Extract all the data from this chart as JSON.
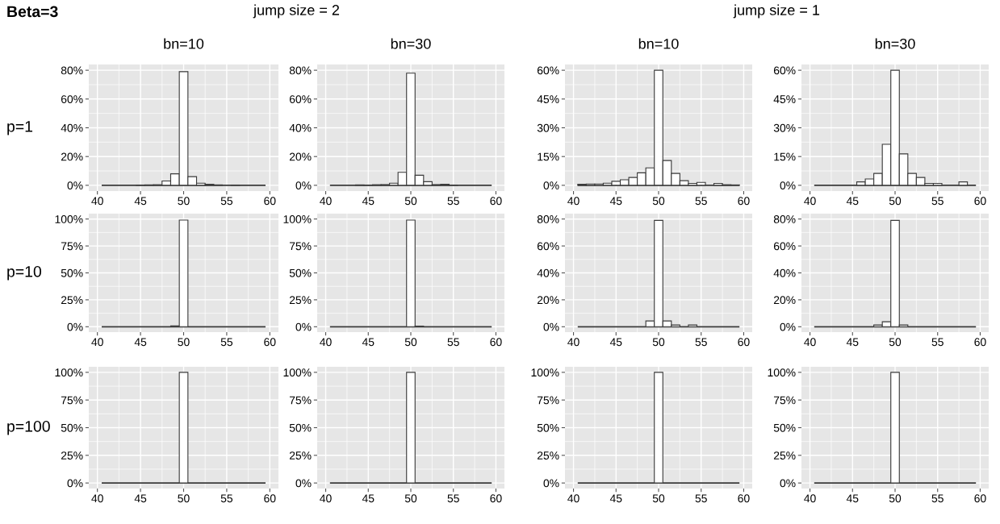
{
  "chart_data": [
    {
      "type": "histogram",
      "title": "bn=10",
      "ylabel": "p=1",
      "annotations": [
        "Beta=3",
        "jump size = 2"
      ],
      "bins": [
        40.5,
        41.5,
        42.5,
        43.5,
        44.5,
        45.5,
        46.5,
        47.5,
        48.5,
        49.5,
        50.5,
        51.5,
        52.5,
        53.5,
        54.5,
        55.5,
        56.5,
        57.5,
        58.5,
        59.5
      ],
      "values": [
        0,
        0,
        0,
        null,
        0.2,
        0.3,
        0.4,
        3,
        8,
        79,
        6,
        1.5,
        0.7,
        0.3,
        0,
        0.2,
        0,
        0,
        0
      ],
      "color": "#ffffff",
      "xlim": [
        39,
        61
      ],
      "xticks": [
        40,
        45,
        50,
        55,
        60
      ],
      "ylim": [
        -4,
        84
      ],
      "yticks": [
        {
          "value": 0,
          "label": "0%"
        },
        {
          "value": 20,
          "label": "20%"
        },
        {
          "value": 40,
          "label": "40%"
        },
        {
          "value": 60,
          "label": "60%"
        },
        {
          "value": 80,
          "label": "80%"
        }
      ],
      "grid": true
    },
    {
      "type": "histogram",
      "title": "bn=30",
      "bins": [
        40.5,
        41.5,
        42.5,
        43.5,
        44.5,
        45.5,
        46.5,
        47.5,
        48.5,
        49.5,
        50.5,
        51.5,
        52.5,
        53.5,
        54.5,
        55.5,
        56.5,
        57.5,
        58.5,
        59.5
      ],
      "values": [
        0,
        0,
        0,
        0.3,
        0.2,
        0.4,
        0.5,
        1.5,
        9,
        78,
        7,
        2.5,
        0.5,
        0.7,
        0.2,
        0,
        0,
        0,
        0
      ],
      "color": "#ffffff",
      "xlim": [
        39,
        61
      ],
      "xticks": [
        40,
        45,
        50,
        55,
        60
      ],
      "ylim": [
        -4,
        84
      ],
      "yticks": [
        {
          "value": 0,
          "label": "0%"
        },
        {
          "value": 20,
          "label": "20%"
        },
        {
          "value": 40,
          "label": "40%"
        },
        {
          "value": 60,
          "label": "60%"
        },
        {
          "value": 80,
          "label": "80%"
        }
      ],
      "grid": true
    },
    {
      "type": "histogram",
      "title": "bn=10",
      "annotations": [
        "jump size = 1"
      ],
      "bins": [
        40.5,
        41.5,
        42.5,
        43.5,
        44.5,
        45.5,
        46.5,
        47.5,
        48.5,
        49.5,
        50.5,
        51.5,
        52.5,
        53.5,
        54.5,
        55.5,
        56.5,
        57.5,
        58.5,
        59.5
      ],
      "values": [
        0.5,
        0.7,
        0.7,
        1.1,
        2.1,
        2.9,
        4.1,
        6.5,
        9.1,
        60,
        12.9,
        6.2,
        2.4,
        1,
        1.5,
        0,
        1,
        0.3,
        0.2
      ],
      "color": "#ffffff",
      "xlim": [
        39,
        61
      ],
      "xticks": [
        40,
        45,
        50,
        55,
        60
      ],
      "ylim": [
        -3,
        63
      ],
      "yticks": [
        {
          "value": 0,
          "label": "0%"
        },
        {
          "value": 15,
          "label": "15%"
        },
        {
          "value": 30,
          "label": "30%"
        },
        {
          "value": 45,
          "label": "45%"
        },
        {
          "value": 60,
          "label": "60%"
        }
      ],
      "grid": true
    },
    {
      "type": "histogram",
      "title": "bn=30",
      "bins": [
        40.5,
        41.5,
        42.5,
        43.5,
        44.5,
        45.5,
        46.5,
        47.5,
        48.5,
        49.5,
        50.5,
        51.5,
        52.5,
        53.5,
        54.5,
        55.5,
        56.5,
        57.5,
        58.5,
        59.5
      ],
      "values": [
        0,
        0,
        0,
        0,
        0,
        1.8,
        3.3,
        6.2,
        21.4,
        60,
        16.4,
        6.2,
        4.1,
        1,
        1,
        0,
        0,
        1.8,
        0
      ],
      "color": "#ffffff",
      "xlim": [
        39,
        61
      ],
      "xticks": [
        40,
        45,
        50,
        55,
        60
      ],
      "ylim": [
        -3,
        63
      ],
      "yticks": [
        {
          "value": 0,
          "label": "0%"
        },
        {
          "value": 15,
          "label": "15%"
        },
        {
          "value": 30,
          "label": "30%"
        },
        {
          "value": 45,
          "label": "45%"
        },
        {
          "value": 60,
          "label": "60%"
        }
      ],
      "grid": true
    },
    {
      "type": "histogram",
      "ylabel": "p=10",
      "bins": [
        40.5,
        41.5,
        42.5,
        43.5,
        44.5,
        45.5,
        46.5,
        47.5,
        48.5,
        49.5,
        50.5,
        51.5,
        52.5,
        53.5,
        54.5,
        55.5,
        56.5,
        57.5,
        58.5,
        59.5
      ],
      "values": [
        0,
        0,
        0,
        0,
        0,
        0,
        0,
        0,
        0.8,
        99,
        null,
        0,
        0,
        0,
        0,
        0,
        0,
        0,
        0
      ],
      "color": "#ffffff",
      "xlim": [
        39,
        61
      ],
      "xticks": [
        40,
        45,
        50,
        55,
        60
      ],
      "ylim": [
        -5,
        105
      ],
      "yticks": [
        {
          "value": 0,
          "label": "0%"
        },
        {
          "value": 25,
          "label": "25%"
        },
        {
          "value": 50,
          "label": "50%"
        },
        {
          "value": 75,
          "label": "75%"
        },
        {
          "value": 100,
          "label": "100%"
        }
      ],
      "grid": true
    },
    {
      "type": "histogram",
      "bins": [
        40.5,
        41.5,
        42.5,
        43.5,
        44.5,
        45.5,
        46.5,
        47.5,
        48.5,
        49.5,
        50.5,
        51.5,
        52.5,
        53.5,
        54.5,
        55.5,
        56.5,
        57.5,
        58.5,
        59.5
      ],
      "values": [
        0,
        0,
        0,
        0,
        0,
        0,
        0,
        0,
        0,
        99,
        0.6,
        0,
        0,
        0,
        0,
        0,
        0,
        0,
        0
      ],
      "color": "#ffffff",
      "xlim": [
        39,
        61
      ],
      "xticks": [
        40,
        45,
        50,
        55,
        60
      ],
      "ylim": [
        -5,
        105
      ],
      "yticks": [
        {
          "value": 0,
          "label": "0%"
        },
        {
          "value": 25,
          "label": "25%"
        },
        {
          "value": 50,
          "label": "50%"
        },
        {
          "value": 75,
          "label": "75%"
        },
        {
          "value": 100,
          "label": "100%"
        }
      ],
      "grid": true
    },
    {
      "type": "histogram",
      "bins": [
        40.5,
        41.5,
        42.5,
        43.5,
        44.5,
        45.5,
        46.5,
        47.5,
        48.5,
        49.5,
        50.5,
        51.5,
        52.5,
        53.5,
        54.5,
        55.5,
        56.5,
        57.5,
        58.5,
        59.5
      ],
      "values": [
        0,
        0,
        0,
        0,
        0,
        0,
        0,
        0,
        4.3,
        79,
        4.3,
        1.3,
        0,
        1.3,
        0,
        0,
        0,
        0,
        0
      ],
      "color": "#ffffff",
      "xlim": [
        39,
        61
      ],
      "xticks": [
        40,
        45,
        50,
        55,
        60
      ],
      "ylim": [
        -4,
        84
      ],
      "yticks": [
        {
          "value": 0,
          "label": "0%"
        },
        {
          "value": 20,
          "label": "20%"
        },
        {
          "value": 40,
          "label": "40%"
        },
        {
          "value": 60,
          "label": "60%"
        },
        {
          "value": 80,
          "label": "80%"
        }
      ],
      "grid": true
    },
    {
      "type": "histogram",
      "bins": [
        40.5,
        41.5,
        42.5,
        43.5,
        44.5,
        45.5,
        46.5,
        47.5,
        48.5,
        49.5,
        50.5,
        51.5,
        52.5,
        53.5,
        54.5,
        55.5,
        56.5,
        57.5,
        58.5,
        59.5
      ],
      "values": [
        0,
        0,
        0,
        0,
        0,
        0,
        0,
        1.3,
        3.7,
        79,
        1.3,
        0,
        0,
        0,
        0,
        0,
        0,
        0,
        0
      ],
      "color": "#ffffff",
      "xlim": [
        39,
        61
      ],
      "xticks": [
        40,
        45,
        50,
        55,
        60
      ],
      "ylim": [
        -4,
        84
      ],
      "yticks": [
        {
          "value": 0,
          "label": "0%"
        },
        {
          "value": 20,
          "label": "20%"
        },
        {
          "value": 40,
          "label": "40%"
        },
        {
          "value": 60,
          "label": "60%"
        },
        {
          "value": 80,
          "label": "80%"
        }
      ],
      "grid": true
    },
    {
      "type": "histogram",
      "ylabel": "p=100",
      "bins": [
        40.5,
        41.5,
        42.5,
        43.5,
        44.5,
        45.5,
        46.5,
        47.5,
        48.5,
        49.5,
        50.5,
        51.5,
        52.5,
        53.5,
        54.5,
        55.5,
        56.5,
        57.5,
        58.5,
        59.5
      ],
      "values": [
        0,
        0,
        0,
        0,
        0,
        0,
        0,
        0,
        0,
        100,
        0,
        0,
        0,
        0,
        0,
        0,
        0,
        0,
        0
      ],
      "color": "#ffffff",
      "xlim": [
        39,
        61
      ],
      "xticks": [
        40,
        45,
        50,
        55,
        60
      ],
      "ylim": [
        -5,
        105
      ],
      "yticks": [
        {
          "value": 0,
          "label": "0%"
        },
        {
          "value": 25,
          "label": "25%"
        },
        {
          "value": 50,
          "label": "50%"
        },
        {
          "value": 75,
          "label": "75%"
        },
        {
          "value": 100,
          "label": "100%"
        }
      ],
      "grid": true
    },
    {
      "type": "histogram",
      "bins": [
        40.5,
        41.5,
        42.5,
        43.5,
        44.5,
        45.5,
        46.5,
        47.5,
        48.5,
        49.5,
        50.5,
        51.5,
        52.5,
        53.5,
        54.5,
        55.5,
        56.5,
        57.5,
        58.5,
        59.5
      ],
      "values": [
        0,
        0,
        0,
        0,
        0,
        0,
        0,
        0,
        0,
        100,
        0,
        0,
        0,
        0,
        0,
        0,
        0,
        0,
        0
      ],
      "color": "#ffffff",
      "xlim": [
        39,
        61
      ],
      "xticks": [
        40,
        45,
        50,
        55,
        60
      ],
      "ylim": [
        -5,
        105
      ],
      "yticks": [
        {
          "value": 0,
          "label": "0%"
        },
        {
          "value": 25,
          "label": "25%"
        },
        {
          "value": 50,
          "label": "50%"
        },
        {
          "value": 75,
          "label": "75%"
        },
        {
          "value": 100,
          "label": "100%"
        }
      ],
      "grid": true
    },
    {
      "type": "histogram",
      "bins": [
        40.5,
        41.5,
        42.5,
        43.5,
        44.5,
        45.5,
        46.5,
        47.5,
        48.5,
        49.5,
        50.5,
        51.5,
        52.5,
        53.5,
        54.5,
        55.5,
        56.5,
        57.5,
        58.5,
        59.5
      ],
      "values": [
        0,
        0,
        0,
        0,
        0,
        0,
        0,
        0,
        0,
        100,
        0,
        0,
        0,
        0,
        0,
        0,
        0,
        0,
        0
      ],
      "color": "#ffffff",
      "xlim": [
        39,
        61
      ],
      "xticks": [
        40,
        45,
        50,
        55,
        60
      ],
      "ylim": [
        -5,
        105
      ],
      "yticks": [
        {
          "value": 0,
          "label": "0%"
        },
        {
          "value": 25,
          "label": "25%"
        },
        {
          "value": 50,
          "label": "50%"
        },
        {
          "value": 75,
          "label": "75%"
        },
        {
          "value": 100,
          "label": "100%"
        }
      ],
      "grid": true
    },
    {
      "type": "histogram",
      "bins": [
        40.5,
        41.5,
        42.5,
        43.5,
        44.5,
        45.5,
        46.5,
        47.5,
        48.5,
        49.5,
        50.5,
        51.5,
        52.5,
        53.5,
        54.5,
        55.5,
        56.5,
        57.5,
        58.5,
        59.5
      ],
      "values": [
        0,
        0,
        0,
        0,
        0,
        0,
        0,
        0,
        0,
        100,
        0,
        0,
        0,
        0,
        0,
        0,
        0,
        0,
        0
      ],
      "color": "#ffffff",
      "xlim": [
        39,
        61
      ],
      "xticks": [
        40,
        45,
        50,
        55,
        60
      ],
      "ylim": [
        -5,
        105
      ],
      "yticks": [
        {
          "value": 0,
          "label": "0%"
        },
        {
          "value": 25,
          "label": "25%"
        },
        {
          "value": 50,
          "label": "50%"
        },
        {
          "value": 75,
          "label": "75%"
        },
        {
          "value": 100,
          "label": "100%"
        }
      ],
      "grid": true
    }
  ]
}
